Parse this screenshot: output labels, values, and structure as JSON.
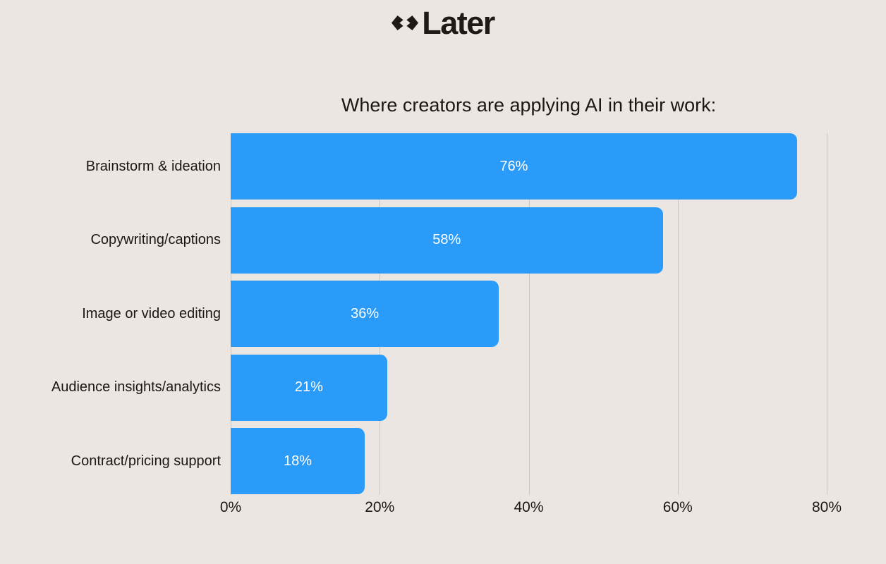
{
  "page": {
    "background": "#EBE6E1"
  },
  "logo": {
    "brand": "Later",
    "mark_icon": "later-split-diamond-mark",
    "color": "#1E1A17"
  },
  "chart_data": {
    "type": "bar",
    "orientation": "horizontal",
    "title": "Where creators are applying AI in their work:",
    "categories": [
      "Brainstorm & ideation",
      "Copywriting/captions",
      "Image or video editing",
      "Audience insights/analytics",
      "Contract/pricing support"
    ],
    "values": [
      76,
      58,
      36,
      21,
      18
    ],
    "value_labels": [
      "76%",
      "58%",
      "36%",
      "21%",
      "18%"
    ],
    "x_tick_labels": [
      "0%",
      "20%",
      "40%",
      "60%",
      "80%"
    ],
    "x_tick_values": [
      0,
      20,
      40,
      60,
      80
    ],
    "xlim": [
      0,
      80
    ],
    "grid": true,
    "legend": false,
    "bar_color": "#2B9BFA",
    "bar_label_color": "#FFFFFF",
    "gridline_color": "#CBC6C1",
    "text_color": "#1A1714"
  }
}
